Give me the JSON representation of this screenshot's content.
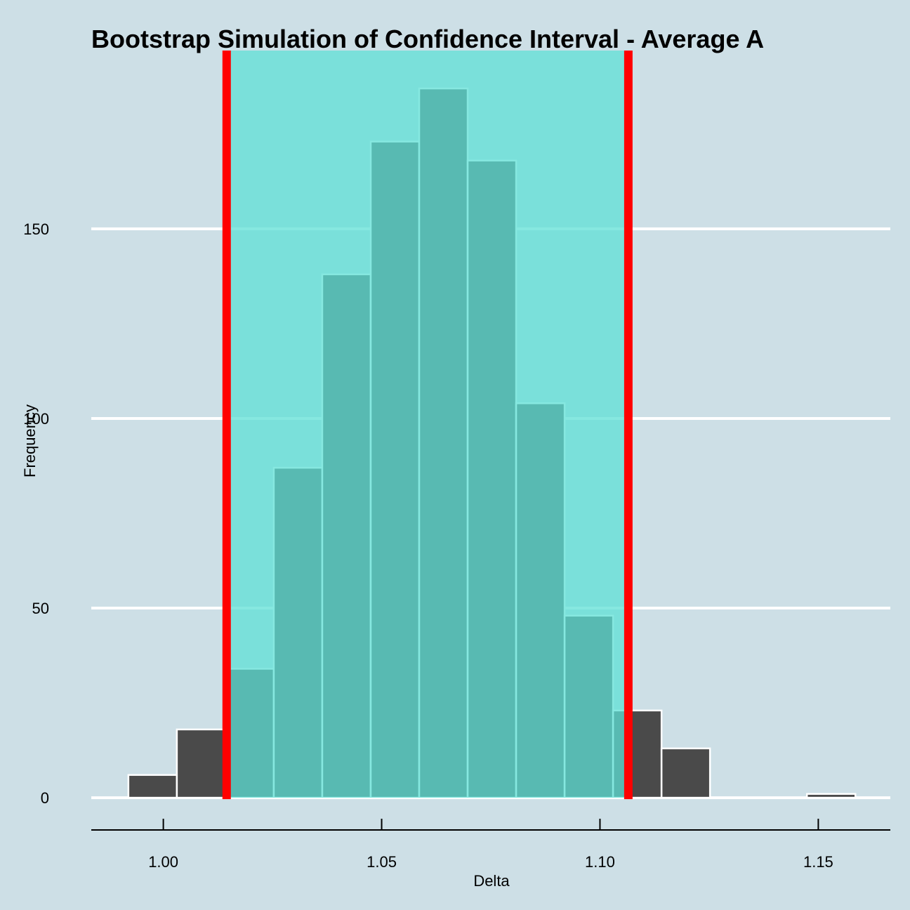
{
  "chart_data": {
    "type": "bar",
    "title": "Bootstrap Simulation of Confidence Interval - Average A",
    "xlabel": "Delta",
    "ylabel": "Frequency",
    "xlim": [
      0.9835,
      1.1665
    ],
    "ylim": [
      -8.5,
      197
    ],
    "x_ticks": [
      1.0,
      1.05,
      1.1,
      1.15
    ],
    "x_tick_labels": [
      "1.00",
      "1.05",
      "1.10",
      "1.15"
    ],
    "y_ticks": [
      0,
      50,
      100,
      150
    ],
    "y_tick_labels": [
      "0",
      "50",
      "100",
      "150"
    ],
    "grid": "horizontal",
    "bin_width": 0.0111,
    "bins": [
      {
        "start": 0.992,
        "count": 6
      },
      {
        "start": 1.0031,
        "count": 18
      },
      {
        "start": 1.0142,
        "count": 34
      },
      {
        "start": 1.0253,
        "count": 87
      },
      {
        "start": 1.0364,
        "count": 138
      },
      {
        "start": 1.0475,
        "count": 173
      },
      {
        "start": 1.0586,
        "count": 187
      },
      {
        "start": 1.0697,
        "count": 168
      },
      {
        "start": 1.0808,
        "count": 104
      },
      {
        "start": 1.0919,
        "count": 48
      },
      {
        "start": 1.103,
        "count": 23
      },
      {
        "start": 1.1141,
        "count": 13
      },
      {
        "start": 1.1252,
        "count": 0
      },
      {
        "start": 1.1363,
        "count": 0
      },
      {
        "start": 1.1474,
        "count": 1
      }
    ],
    "confidence_interval": {
      "lower": 1.0145,
      "upper": 1.1065
    },
    "colors": {
      "background": "#cddfe6",
      "bar_fill": "#4a4a4a",
      "bar_stroke": "#ffffff",
      "ci_band": "#5ee0d6",
      "ci_band_opacity": 0.75,
      "ci_line": "#ff0000",
      "grid": "#ffffff",
      "axis": "#000000"
    }
  }
}
